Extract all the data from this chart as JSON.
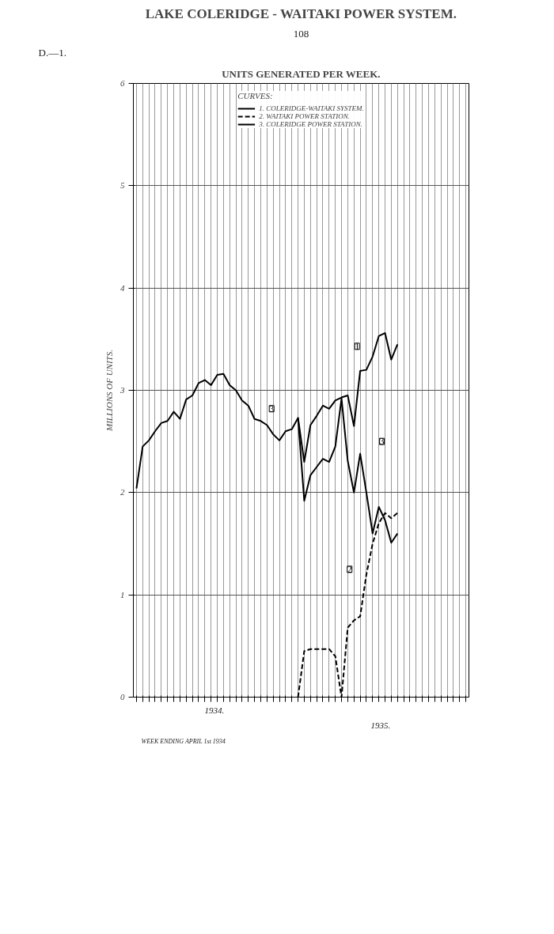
{
  "chart_data": {
    "type": "line",
    "title": "LAKE COLERIDGE - WAITAKI POWER SYSTEM.",
    "subtitle": "UNITS GENERATED PER WEEK.",
    "ylabel": "MILLIONS OF UNITS.",
    "legend_title": "CURVES:",
    "legend": "top",
    "grid": true,
    "tick_labels": "y",
    "ylim": [
      0,
      6
    ],
    "yticks": [
      0,
      1,
      2,
      3,
      4,
      5,
      6
    ],
    "categories": [
      null,
      null,
      null,
      null,
      null,
      null,
      null,
      null,
      null,
      null,
      null,
      null,
      null,
      null,
      null,
      null,
      null,
      null,
      null,
      null,
      null,
      null,
      null,
      null,
      null,
      null,
      null,
      null,
      null,
      null,
      null,
      null,
      null,
      null,
      null,
      null,
      null,
      null,
      null,
      null,
      null,
      null,
      null,
      null,
      null,
      null,
      null,
      null,
      null,
      null,
      null,
      null,
      null,
      null
    ],
    "series": [
      {
        "name": "1. COLERIDGE-WAITAKI SYSTEM.",
        "color": "#000000",
        "line_style": "solid",
        "values": [
          null,
          null,
          null,
          null,
          null,
          null,
          null,
          null,
          null,
          null,
          null,
          null,
          null,
          null,
          null,
          null,
          null,
          null,
          null,
          null,
          null,
          null,
          null,
          null,
          null,
          null,
          2.73,
          2.3,
          2.66,
          2.75,
          2.85,
          2.82,
          2.9,
          2.93,
          2.95,
          2.65,
          3.19,
          3.2,
          3.33,
          3.53,
          3.56,
          3.3,
          3.45,
          null,
          null,
          null,
          null,
          null,
          null,
          null,
          null,
          null,
          null,
          null
        ]
      },
      {
        "name": "2. WAITAKI POWER STATION.",
        "color": "#000000",
        "line_style": "dashed",
        "values": [
          null,
          null,
          null,
          null,
          null,
          null,
          null,
          null,
          null,
          null,
          null,
          null,
          null,
          null,
          null,
          null,
          null,
          null,
          null,
          null,
          null,
          null,
          null,
          null,
          null,
          null,
          0,
          0.45,
          0.47,
          0.47,
          0.47,
          0.47,
          0.4,
          0.0,
          0.68,
          0.75,
          0.79,
          1.2,
          1.5,
          1.7,
          1.8,
          1.75,
          1.8,
          null,
          null,
          null,
          null,
          null,
          null,
          null,
          null,
          null,
          null,
          null
        ]
      },
      {
        "name": "3. COLERIDGE POWER STATION.",
        "color": "#000000",
        "line_style": "solid",
        "values": [
          2.04,
          2.45,
          2.51,
          2.6,
          2.68,
          2.7,
          2.79,
          2.72,
          2.91,
          2.95,
          3.07,
          3.1,
          3.05,
          3.15,
          3.16,
          3.05,
          3.0,
          2.9,
          2.85,
          2.72,
          2.7,
          2.66,
          2.57,
          2.51,
          2.6,
          2.62,
          2.73,
          1.92,
          2.17,
          2.25,
          2.33,
          2.3,
          2.45,
          2.92,
          2.31,
          2.0,
          2.38,
          2.0,
          1.6,
          1.86,
          1.73,
          1.51,
          1.6,
          null,
          null,
          null,
          null,
          null,
          null,
          null,
          null,
          null,
          null,
          null
        ]
      }
    ],
    "annotations": [
      "D.—1.",
      "108",
      "1934.",
      "1935.",
      "WEEK ENDING APRIL 1st 1934",
      "1",
      "2",
      "3",
      "3"
    ]
  }
}
